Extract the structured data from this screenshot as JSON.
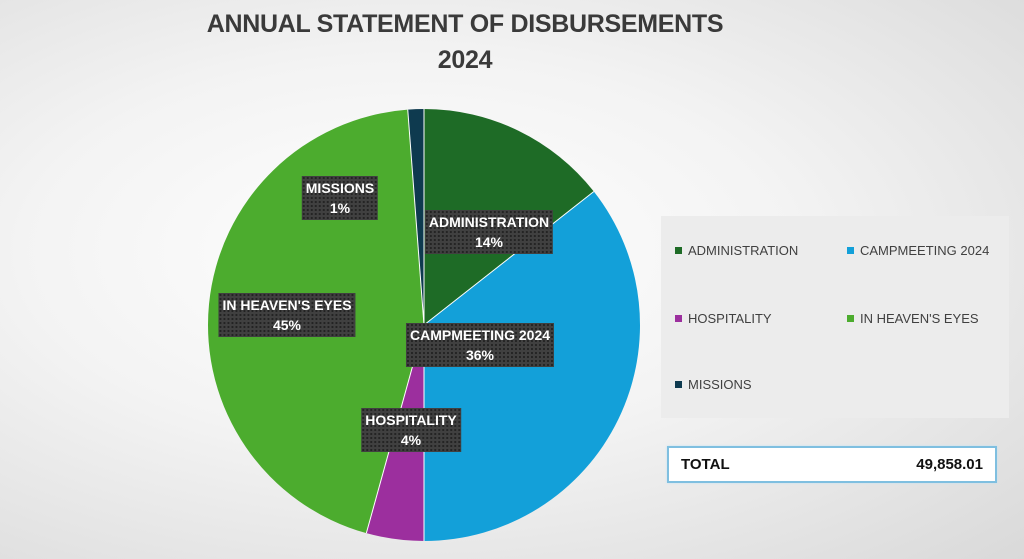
{
  "chart_data": {
    "type": "pie",
    "title_line1": "ANNUAL STATEMENT OF DISBURSEMENTS",
    "title_line2": "2024",
    "slices": [
      {
        "label": "ADMINISTRATION",
        "percent_label": "14%",
        "value": 14.4,
        "color": "#1e6b26"
      },
      {
        "label": "CAMPMEETING 2024",
        "percent_label": "36%",
        "value": 35.6,
        "color": "#13a0d9"
      },
      {
        "label": "HOSPITALITY",
        "percent_label": "4%",
        "value": 4.3,
        "color": "#9c2f9e"
      },
      {
        "label": "IN HEAVEN'S EYES",
        "percent_label": "45%",
        "value": 44.5,
        "color": "#4cac2e"
      },
      {
        "label": "MISSIONS",
        "percent_label": "1%",
        "value": 1.2,
        "color": "#0e3a4f"
      }
    ],
    "legend_placement": "right"
  },
  "total": {
    "label": "TOTAL",
    "value": "49,858.01"
  }
}
